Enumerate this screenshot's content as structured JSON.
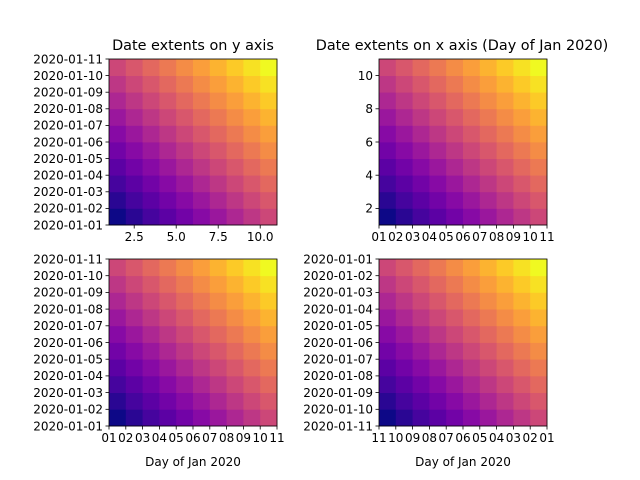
{
  "chart_data": [
    {
      "type": "heatmap",
      "title": "Date extents on y axis",
      "xlabel": "",
      "ylabel": "",
      "xlim": [
        1,
        11
      ],
      "ylim": [
        "2020-01-01",
        "2020-01-11"
      ],
      "x_ticks": [
        "2.5",
        "5.0",
        "7.5",
        "10.0"
      ],
      "y_ticks": [
        "2020-01-01",
        "2020-01-02",
        "2020-01-03",
        "2020-01-04",
        "2020-01-05",
        "2020-01-06",
        "2020-01-07",
        "2020-01-08",
        "2020-01-09",
        "2020-01-10",
        "2020-01-11"
      ],
      "colormap": "plasma",
      "grid": false,
      "values_desc": "10x10 grid, value = column index + row index from bottom-left"
    },
    {
      "type": "heatmap",
      "title": "Date extents on x axis (Day of Jan 2020)",
      "xlabel": "",
      "ylabel": "",
      "xlim": [
        "2020-01-01",
        "2020-01-11"
      ],
      "ylim": [
        1,
        11
      ],
      "x_ticks": [
        "01",
        "02",
        "03",
        "04",
        "05",
        "06",
        "07",
        "08",
        "09",
        "10",
        "11"
      ],
      "y_ticks": [
        "2",
        "4",
        "6",
        "8",
        "10"
      ],
      "colormap": "plasma",
      "grid": false
    },
    {
      "type": "heatmap",
      "title": "",
      "xlabel": "Day of Jan 2020",
      "ylabel": "",
      "xlim": [
        "2020-01-01",
        "2020-01-11"
      ],
      "ylim": [
        "2020-01-01",
        "2020-01-11"
      ],
      "x_ticks": [
        "01",
        "02",
        "03",
        "04",
        "05",
        "06",
        "07",
        "08",
        "09",
        "10",
        "11"
      ],
      "y_ticks": [
        "2020-01-01",
        "2020-01-02",
        "2020-01-03",
        "2020-01-04",
        "2020-01-05",
        "2020-01-06",
        "2020-01-07",
        "2020-01-08",
        "2020-01-09",
        "2020-01-10",
        "2020-01-11"
      ],
      "colormap": "plasma",
      "grid": false
    },
    {
      "type": "heatmap",
      "title": "",
      "xlabel": "Day of Jan 2020",
      "ylabel": "",
      "xlim": [
        "2020-01-11",
        "2020-01-01"
      ],
      "ylim": [
        "2020-01-11",
        "2020-01-01"
      ],
      "x_ticks": [
        "11",
        "10",
        "09",
        "08",
        "07",
        "06",
        "05",
        "04",
        "03",
        "02",
        "01"
      ],
      "y_ticks": [
        "2020-01-11",
        "2020-01-10",
        "2020-01-09",
        "2020-01-08",
        "2020-01-07",
        "2020-01-06",
        "2020-01-05",
        "2020-01-04",
        "2020-01-03",
        "2020-01-02",
        "2020-01-01"
      ],
      "colormap": "plasma",
      "grid": false
    }
  ]
}
